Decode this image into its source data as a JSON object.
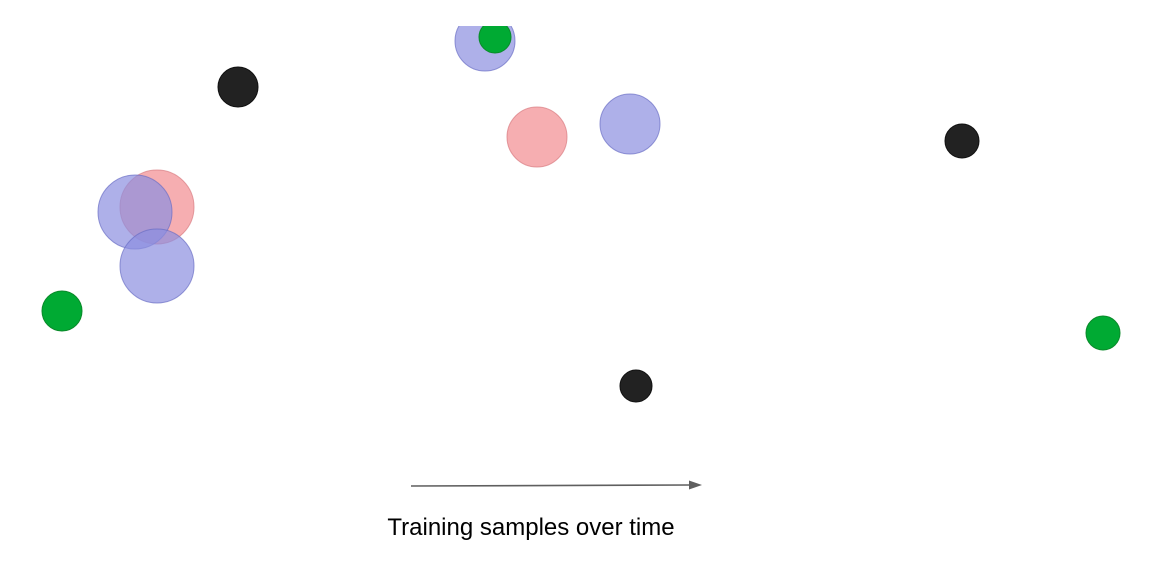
{
  "caption": "Training samples over time",
  "arrow": {
    "color": "#5f5f5f"
  },
  "colors": {
    "blue_fill": "#8c8fe0",
    "blue_stroke": "#6a6ec4",
    "red_fill": "#f28b90",
    "red_stroke": "#d97a80",
    "green_fill": "#00aa33",
    "green_stroke": "#0a8a2a",
    "black_fill": "#222222",
    "black_stroke": "#111111"
  },
  "samples": [
    {
      "kind": "blue",
      "name": "blue-sample-circle"
    },
    {
      "kind": "green",
      "name": "green-sample-dot"
    },
    {
      "kind": "black",
      "name": "black-sample-dot"
    },
    {
      "kind": "red",
      "name": "red-sample-circle"
    },
    {
      "kind": "blue",
      "name": "blue-sample-circle"
    },
    {
      "kind": "black",
      "name": "black-sample-dot"
    },
    {
      "kind": "red",
      "name": "red-sample-circle"
    },
    {
      "kind": "blue",
      "name": "blue-sample-circle"
    },
    {
      "kind": "blue",
      "name": "blue-sample-circle"
    },
    {
      "kind": "green",
      "name": "green-sample-dot"
    },
    {
      "kind": "green",
      "name": "green-sample-dot"
    },
    {
      "kind": "black",
      "name": "black-sample-dot"
    }
  ]
}
